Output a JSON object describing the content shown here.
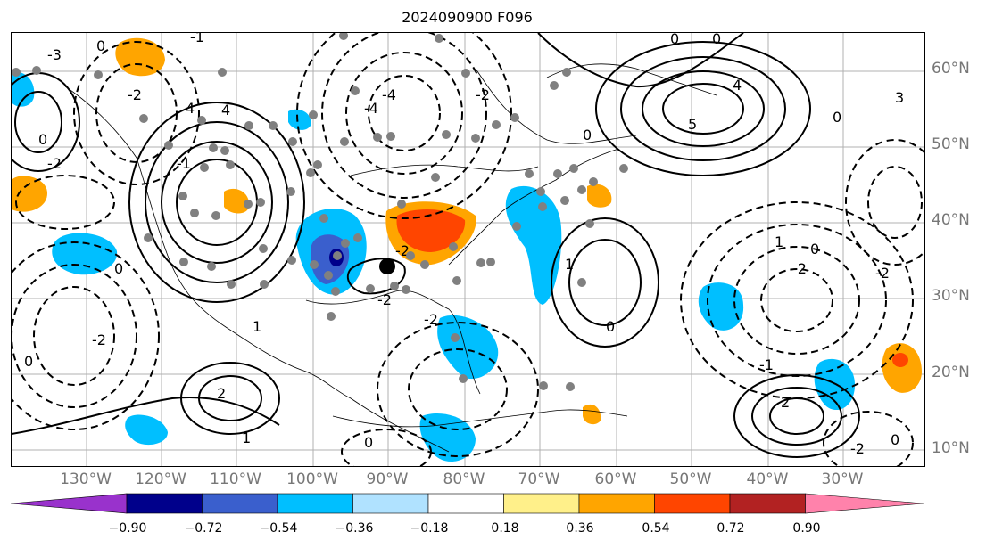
{
  "title": "2024090900 F096",
  "map": {
    "lat_labels": [
      "60°N",
      "50°N",
      "40°N",
      "30°N",
      "20°N",
      "10°N"
    ],
    "lon_labels": [
      "130°W",
      "120°W",
      "110°W",
      "100°W",
      "90°W",
      "80°W",
      "70°W",
      "60°W",
      "50°W",
      "40°W",
      "30°W"
    ],
    "contour_labels": [
      "0",
      "-1",
      "-2",
      "-3",
      "-4",
      "-5",
      "1",
      "2",
      "3",
      "4",
      "5"
    ],
    "contour_solid_color": "#000000",
    "grid_color": "#b0b0b0",
    "marker_color": "#808080",
    "center_marker_color": "#000000"
  },
  "colorbar": {
    "ticks": [
      "−0.90",
      "−0.72",
      "−0.54",
      "−0.36",
      "−0.18",
      "0.18",
      "0.36",
      "0.54",
      "0.72",
      "0.90"
    ],
    "colors": [
      "#9932cc",
      "#00008b",
      "#3a5fcd",
      "#00bfff",
      "#b0e2ff",
      "#ffffff",
      "#fff08a",
      "#ffa500",
      "#ff4500",
      "#b22222",
      "#ff82ab"
    ]
  }
}
